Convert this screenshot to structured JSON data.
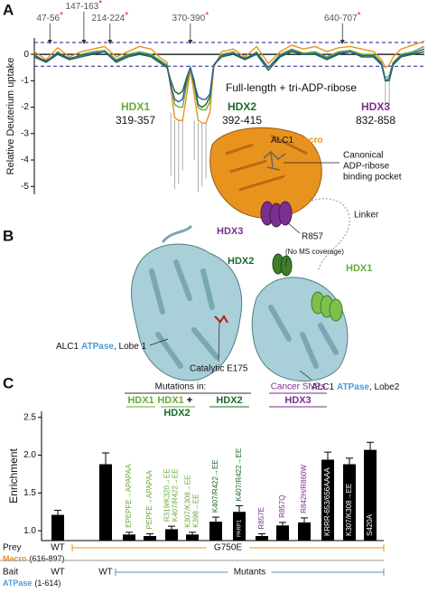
{
  "panel_labels": [
    "A",
    "B",
    "C"
  ],
  "chart_data": [
    {
      "type": "line",
      "ylabel": "Relative Deuterium uptake",
      "subtitle": "Full-length + tri-ADP-ribose",
      "xlim": [
        0,
        100
      ],
      "ylim": [
        -5.3,
        0.62
      ],
      "yticks": [
        0,
        -1,
        -2,
        -3,
        -4,
        -5
      ],
      "zero_line": true,
      "thresholds": [
        0.45,
        -0.45
      ],
      "threshold_color": "#1a1a8c",
      "annotations": [
        {
          "x": 4,
          "label": "47-56",
          "mark": "*"
        },
        {
          "x": 12.7,
          "label": "147-163",
          "mark": "*"
        },
        {
          "x": 19.4,
          "label": "214-224",
          "mark": "*"
        },
        {
          "x": 40,
          "label": "370-390",
          "mark": "*"
        },
        {
          "x": 79,
          "label": "640-707",
          "mark": "*"
        }
      ],
      "mark_color": "#d62020",
      "regions": [
        {
          "name": "HDX1",
          "range": "319-357",
          "color": "#6aaa3a"
        },
        {
          "name": "HDX2",
          "range": "392-415",
          "color": "#1e6b2a"
        },
        {
          "name": "HDX3",
          "range": "832-858",
          "color": "#7a2f8e"
        }
      ],
      "x": [
        0,
        3,
        6,
        9,
        12,
        15,
        18,
        21,
        24,
        27,
        30,
        32,
        34,
        35,
        36,
        37,
        38,
        39,
        40,
        41,
        42,
        43,
        44,
        45,
        46,
        48,
        51,
        54,
        57,
        60,
        63,
        66,
        69,
        72,
        75,
        78,
        81,
        84,
        87,
        89,
        90,
        91,
        92,
        94,
        97,
        100
      ],
      "series": [
        {
          "color": "#e8931e",
          "values": [
            0.1,
            -0.2,
            0.25,
            -0.1,
            0.1,
            0.2,
            0.3,
            -0.1,
            0.1,
            0.3,
            0.2,
            -0.1,
            -0.3,
            -1.3,
            -2.4,
            -2.5,
            -2.5,
            -1.6,
            -0.6,
            -1.5,
            -2.5,
            -2.6,
            -2.6,
            -2.2,
            -0.5,
            0.1,
            0.2,
            -0.1,
            0.3,
            -0.35,
            0.1,
            0.35,
            0.2,
            0.3,
            0.1,
            0.25,
            0.3,
            0.2,
            0.1,
            -0.2,
            -0.5,
            -0.4,
            -0.1,
            0.2,
            0.35,
            0.5
          ]
        },
        {
          "color": "#6aaa3a",
          "values": [
            0.0,
            -0.3,
            0.1,
            -0.2,
            0.0,
            0.1,
            0.15,
            -0.2,
            0.0,
            0.1,
            0.0,
            -0.2,
            -0.4,
            -1.1,
            -1.9,
            -2.0,
            -2.0,
            -1.2,
            -0.5,
            -1.2,
            -2.0,
            -2.1,
            -2.1,
            -1.8,
            -0.4,
            0.0,
            0.1,
            -0.2,
            0.1,
            -0.5,
            0.0,
            0.2,
            0.05,
            0.1,
            -0.1,
            0.1,
            0.15,
            0.0,
            0.0,
            -0.3,
            -0.9,
            -0.8,
            -0.3,
            0.0,
            0.1,
            0.3
          ]
        },
        {
          "color": "#1e6b2a",
          "values": [
            -0.1,
            -0.3,
            0.0,
            -0.2,
            -0.1,
            0.0,
            0.1,
            -0.3,
            -0.1,
            0.0,
            -0.1,
            -0.3,
            -0.5,
            -1.0,
            -1.4,
            -1.5,
            -1.4,
            -0.9,
            -0.5,
            -1.0,
            -1.9,
            -2.0,
            -1.9,
            -1.6,
            -0.4,
            -0.1,
            0.0,
            -0.2,
            0.0,
            -0.6,
            -0.1,
            0.1,
            0.0,
            0.0,
            -0.2,
            0.0,
            0.1,
            -0.1,
            -0.1,
            -0.4,
            -1.0,
            -1.0,
            -0.4,
            -0.1,
            0.0,
            0.1
          ]
        },
        {
          "color": "#2d5aa8",
          "values": [
            -0.05,
            -0.25,
            0.05,
            -0.15,
            -0.05,
            0.05,
            0.1,
            -0.25,
            -0.05,
            0.05,
            -0.05,
            -0.25,
            -0.45,
            -1.2,
            -1.7,
            -1.8,
            -1.7,
            -1.0,
            -0.5,
            -1.1,
            -1.6,
            -1.7,
            -1.7,
            -1.5,
            -0.4,
            -0.05,
            0.05,
            -0.15,
            0.05,
            -0.5,
            -0.05,
            0.15,
            0.0,
            0.05,
            -0.15,
            0.05,
            0.1,
            -0.05,
            -0.05,
            -0.35,
            -1.0,
            -0.9,
            -0.35,
            -0.05,
            0.05,
            0.2
          ]
        }
      ]
    },
    {
      "type": "bar",
      "ylabel": "Enrichment",
      "ylim": [
        0.87,
        2.58
      ],
      "yticks": [
        {
          "value": 1,
          "label": "1.0"
        },
        {
          "value": 1.5,
          "label": "1.5"
        },
        {
          "value": 2,
          "label": "2.0"
        },
        {
          "value": 2.5,
          "label": "2.5"
        }
      ],
      "color": "#000000",
      "values": [
        1.21,
        1.88,
        0.95,
        0.93,
        1.02,
        0.95,
        1.12,
        1.25,
        0.93,
        1.07,
        1.11,
        1.94,
        1.88,
        2.07
      ],
      "errors": [
        0.06,
        0.15,
        0.03,
        0.03,
        0.04,
        0.03,
        0.06,
        0.08,
        0.03,
        0.04,
        0.06,
        0.1,
        0.08,
        0.1
      ],
      "categories": [
        null,
        null,
        [
          "EPEPFE→APAPAA"
        ],
        [
          "PEPFE→APAPAA"
        ],
        [
          "R319/K320→EE",
          "K407/R422→EE"
        ],
        [
          "K307/K308→EE",
          "K398→EE"
        ],
        [
          "K407/R422→EE"
        ],
        [
          "K407/R422→EE"
        ],
        [
          "R857E"
        ],
        [
          "R857Q"
        ],
        [
          "R842H/R860W"
        ],
        [
          "KRRR-653/656AAAA"
        ],
        [
          "K307/K308→EE"
        ],
        [
          "S420A"
        ]
      ],
      "label_colors": [
        null,
        null,
        "#6aaa3a",
        "#6aaa3a",
        "#6aaa3a",
        "#6aaa3a",
        "#1e6b2a",
        "#1e6b2a",
        "#7a2f8e",
        "#7a2f8e",
        "#7a2f8e",
        "#ffffff",
        "#ffffff",
        "#ffffff"
      ],
      "label_positions": [
        null,
        null,
        "above",
        "above",
        "above",
        "above",
        "above",
        "above",
        "above",
        "above",
        "above",
        "inside",
        "inside",
        "inside"
      ],
      "inside_labels": [
        null,
        null,
        null,
        null,
        null,
        null,
        null,
        "PARP1",
        null,
        null,
        null,
        null,
        null,
        null
      ],
      "header": "Mutations in:",
      "snp_header": {
        "text": "Cancer SNPs",
        "color": "#7a2f8e"
      },
      "groups": [
        {
          "parts": [
            {
              "text": "HDX1",
              "color": "#6aaa3a"
            }
          ]
        },
        {
          "parts": [
            {
              "text": "HDX1",
              "color": "#6aaa3a"
            },
            {
              "text": "+",
              "color": "#000000"
            },
            {
              "text": "HDX2",
              "color": "#1e6b2a"
            }
          ]
        },
        {
          "parts": [
            {
              "text": "HDX2",
              "color": "#1e6b2a"
            }
          ]
        },
        {
          "parts": [
            {
              "text": "HDX3",
              "color": "#7a2f8e"
            }
          ]
        }
      ],
      "rows": [
        {
          "label": "Prey",
          "domain": "Macro",
          "range": "(616-897)",
          "color": "#e8931e",
          "entries": [
            "WT",
            "G750E"
          ]
        },
        {
          "label": "Bait",
          "domain": "ATPase",
          "range": "(1-614)",
          "color": "#4a9ad8",
          "entries": [
            "WT",
            "WT",
            "Mutants"
          ]
        }
      ]
    }
  ],
  "structure": {
    "macro_label": {
      "prefix": "ALC1",
      "domain": "Macro"
    },
    "pocket_label": [
      "Canonical",
      "ADP-ribose",
      "binding pocket"
    ],
    "linker": "Linker",
    "hdx3": "HDX3",
    "r857": "R857",
    "hdx2": "HDX2",
    "no_coverage": "(No MS coverage)",
    "hdx1": "HDX1",
    "lobe1": {
      "prefix": "ALC1",
      "domain": "ATPase",
      "suffix": ", Lobe 1"
    },
    "catalytic": "Catalytic E175",
    "lobe2": {
      "prefix": "ALC1",
      "domain": "ATPase",
      "suffix": ", Lobe2"
    }
  }
}
